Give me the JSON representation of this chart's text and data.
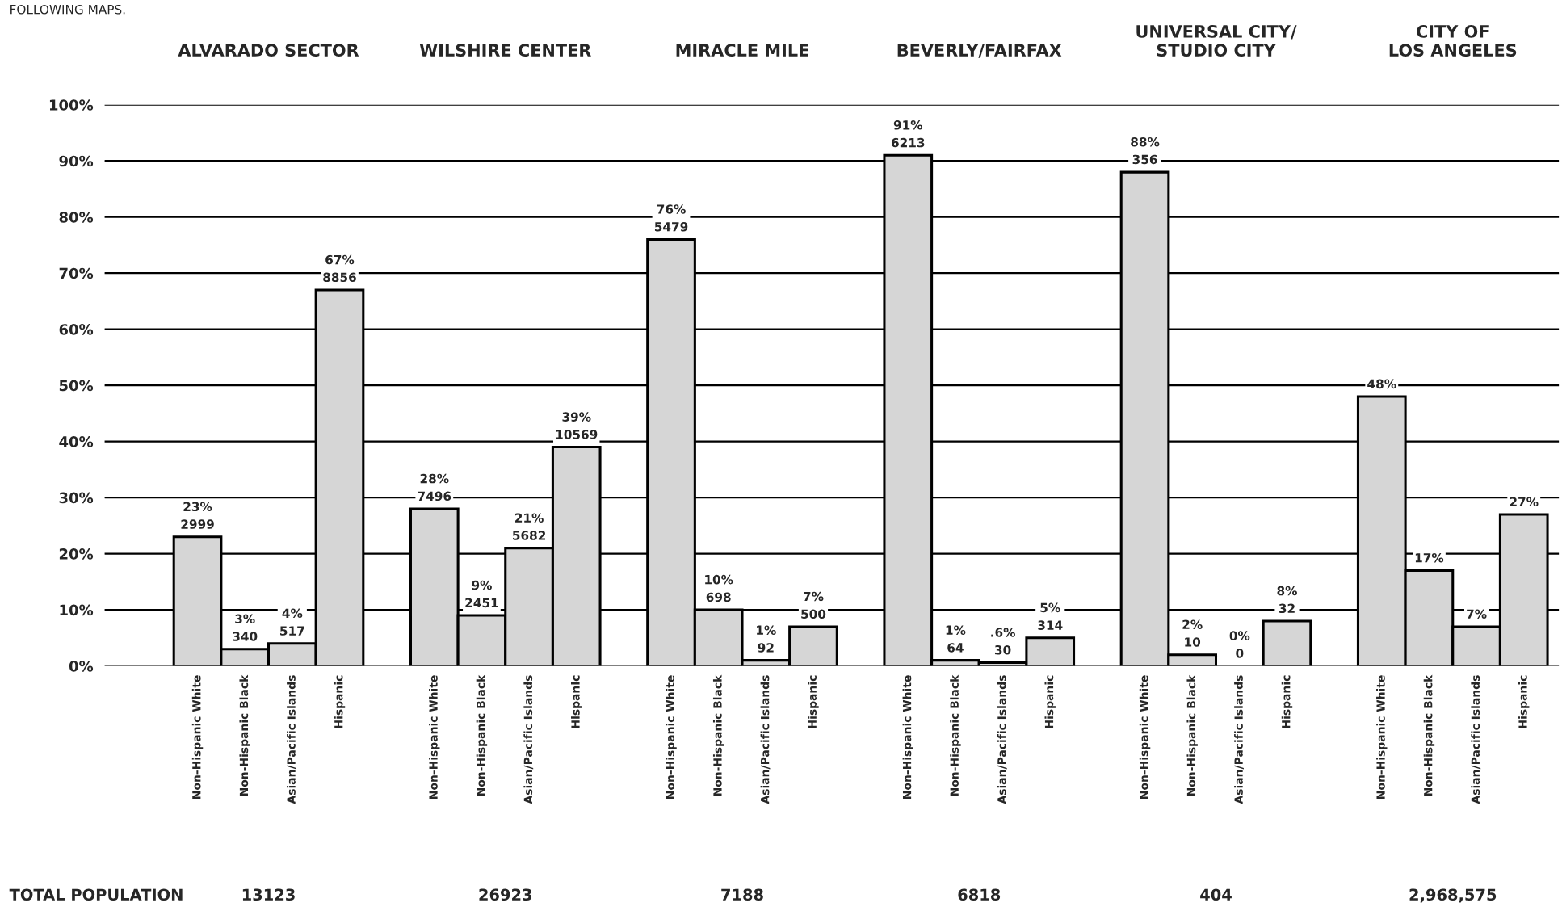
{
  "chart_data": {
    "type": "bar",
    "categories": [
      "Non-Hispanic White",
      "Non-Hispanic Black",
      "Asian/Pacific Islands",
      "Hispanic",
      null,
      "Non-Hispanic White",
      "Non-Hispanic Black",
      "Asian/Pacific Islands",
      "Hispanic",
      null,
      "Non-Hispanic White",
      "Non-Hispanic Black",
      "Asian/Pacific Islands",
      "Hispanic",
      null,
      "Non-Hispanic White",
      "Non-Hispanic Black",
      "Asian/Pacific Islands",
      "Hispanic",
      null,
      "Non-Hispanic White",
      "Non-Hispanic Black",
      "Asian/Pacific Islands",
      "Hispanic",
      null,
      "Non-Hispanic White",
      "Non-Hispanic Black",
      "Asian/Pacific Islands",
      "Hispanic"
    ],
    "values": [
      23,
      3,
      4,
      67,
      null,
      28,
      9,
      21,
      39,
      null,
      76,
      10,
      1,
      7,
      null,
      91,
      1,
      0.6,
      5,
      null,
      88,
      2,
      0,
      8,
      null,
      48,
      17,
      7,
      27
    ],
    "value_labels": [
      "23%\n2999",
      "3%\n340",
      "4%\n517",
      "67%\n8856",
      null,
      "28%\n7496",
      "9%\n2451",
      "21%\n5682",
      "39%\n10569",
      null,
      "76%\n5479",
      "10%\n698",
      "1%\n92",
      "7%\n500",
      null,
      "91%\n6213",
      "1%\n64",
      ".6%\n30",
      "5%\n314",
      null,
      "88%\n356",
      "2%\n10",
      "0%\n0",
      "8%\n32",
      null,
      "48%",
      "17%",
      "7%",
      "27%"
    ],
    "color": "#d6d6d6",
    "ylim": [
      0,
      100
    ],
    "yticks": [
      {
        "value": 0,
        "label": "0%"
      },
      {
        "value": 10,
        "label": "10%"
      },
      {
        "value": 20,
        "label": "20%"
      },
      {
        "value": 30,
        "label": "30%"
      },
      {
        "value": 40,
        "label": "40%"
      },
      {
        "value": 50,
        "label": "50%"
      },
      {
        "value": 60,
        "label": "60%"
      },
      {
        "value": 70,
        "label": "70%"
      },
      {
        "value": 80,
        "label": "80%"
      },
      {
        "value": 90,
        "label": "90%"
      },
      {
        "value": 100,
        "label": "100%"
      }
    ],
    "grid": "y",
    "annotations": [
      "FOLLOWING MAPS.",
      "ALVARADO SECTOR",
      "WILSHIRE CENTER",
      "MIRACLE MILE",
      "BEVERLY/FAIRFAX",
      "UNIVERSAL CITY/\nSTUDIO CITY",
      "CITY OF\nLOS ANGELES",
      "TOTAL POPULATION",
      "13123",
      "26923",
      "7188",
      "6818",
      "404",
      "2,968,575"
    ]
  }
}
